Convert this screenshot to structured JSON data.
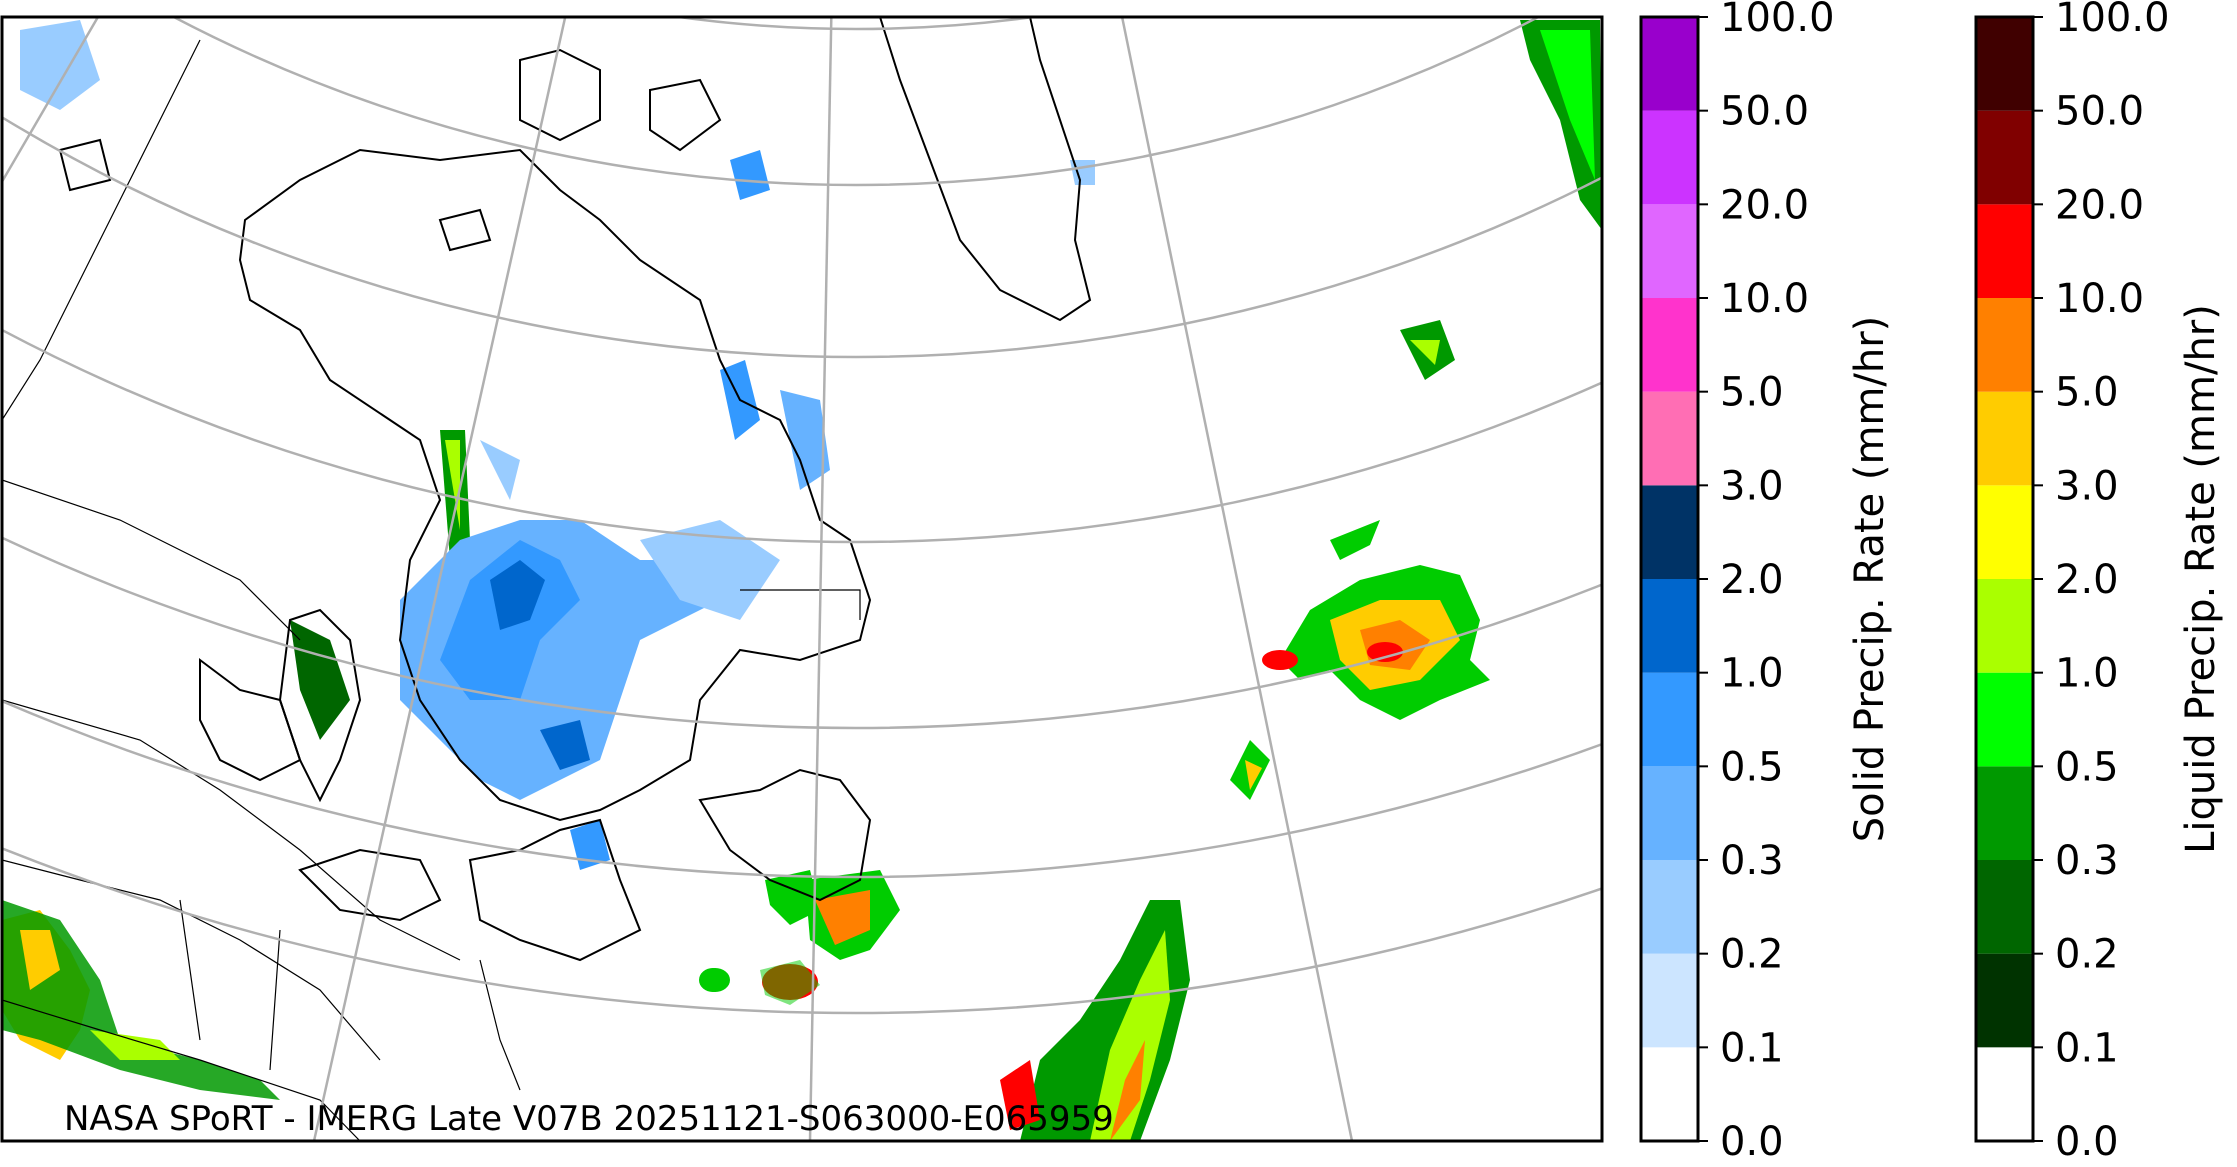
{
  "map": {
    "annotation": "NASA SPoRT - IMERG Late V07B 20251121-S063000-E065959"
  },
  "colorbars": [
    {
      "label": "Solid Precip. Rate (mm/hr)",
      "ticks": [
        "0.0",
        "0.1",
        "0.2",
        "0.3",
        "0.5",
        "1.0",
        "2.0",
        "3.0",
        "5.0",
        "10.0",
        "20.0",
        "50.0",
        "100.0"
      ],
      "colors": [
        "#ffffff",
        "#cce5ff",
        "#99ccff",
        "#66b2ff",
        "#3399ff",
        "#0066cc",
        "#003366",
        "#ff6eb4",
        "#ff33cc",
        "#e066ff",
        "#cc33ff",
        "#9900cc"
      ]
    },
    {
      "label": "Liquid Precip. Rate (mm/hr)",
      "ticks": [
        "0.0",
        "0.1",
        "0.2",
        "0.3",
        "0.5",
        "1.0",
        "2.0",
        "3.0",
        "5.0",
        "10.0",
        "20.0",
        "50.0",
        "100.0"
      ],
      "colors": [
        "#ffffff",
        "#003300",
        "#006600",
        "#009900",
        "#00ff00",
        "#aaff00",
        "#ffff00",
        "#ffcc00",
        "#ff8000",
        "#ff0000",
        "#800000",
        "#400000"
      ]
    }
  ]
}
